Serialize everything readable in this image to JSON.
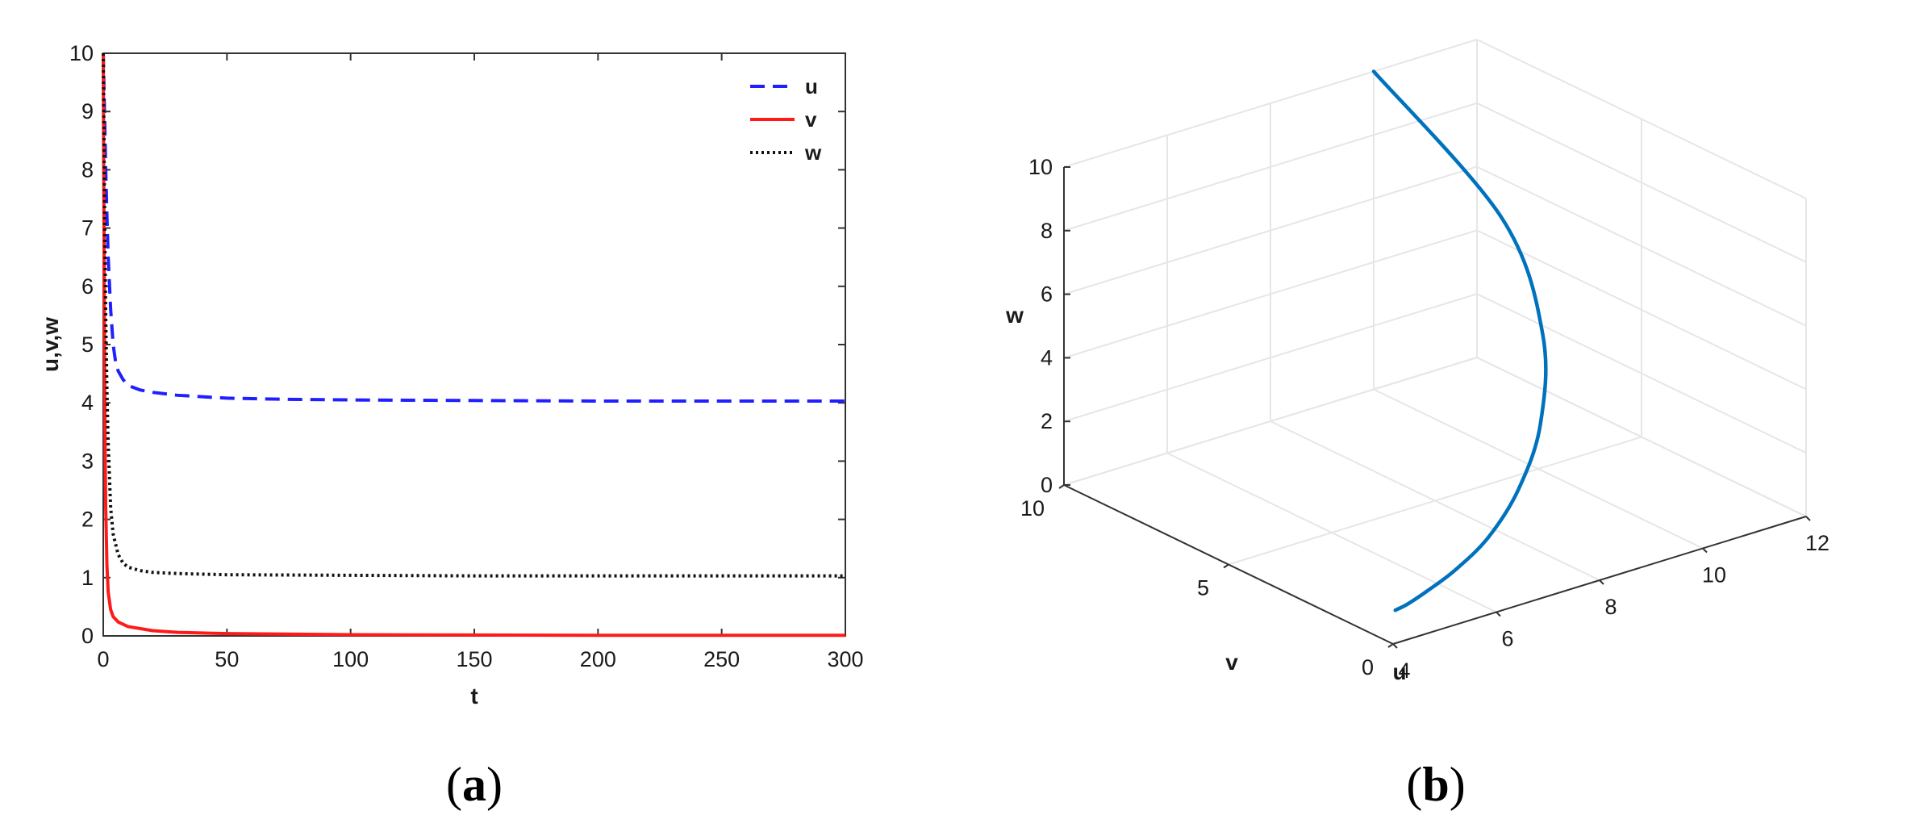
{
  "colors": {
    "u": "#1f1fff",
    "v": "#ff1a1a",
    "w": "#111111",
    "trajectory": "#0072bd",
    "axis": "#333333",
    "grid": "#e6e6e6"
  },
  "panels": {
    "a": {
      "open": "(",
      "letter": "a",
      "close": ")"
    },
    "b": {
      "open": "(",
      "letter": "b",
      "close": ")"
    }
  },
  "chart_data": [
    {
      "type": "line",
      "panel": "a",
      "xlabel": "t",
      "ylabel": "u,v,w",
      "xlim": [
        0,
        300
      ],
      "ylim": [
        0,
        10
      ],
      "xticks": [
        "0",
        "50",
        "100",
        "150",
        "200",
        "250",
        "300"
      ],
      "yticks": [
        "0",
        "1",
        "2",
        "3",
        "4",
        "5",
        "6",
        "7",
        "8",
        "9",
        "10"
      ],
      "legend_position": "top-right",
      "grid": false,
      "series": [
        {
          "name": "u",
          "style": "dashed",
          "x": [
            0,
            0.5,
            1,
            1.5,
            2,
            3,
            4,
            5,
            6,
            8,
            10,
            15,
            20,
            30,
            50,
            75,
            100,
            150,
            200,
            250,
            300
          ],
          "y": [
            10,
            9.0,
            8.0,
            7.2,
            6.5,
            5.6,
            5.0,
            4.7,
            4.55,
            4.4,
            4.3,
            4.22,
            4.18,
            4.13,
            4.08,
            4.06,
            4.05,
            4.04,
            4.03,
            4.03,
            4.03
          ]
        },
        {
          "name": "v",
          "style": "solid",
          "x": [
            0,
            0.2,
            0.4,
            0.6,
            0.8,
            1,
            1.5,
            2,
            3,
            4,
            6,
            10,
            20,
            30,
            50,
            100,
            150,
            200,
            250,
            300
          ],
          "y": [
            10,
            8.0,
            6.0,
            4.3,
            3.0,
            2.2,
            1.2,
            0.75,
            0.45,
            0.33,
            0.24,
            0.16,
            0.09,
            0.06,
            0.04,
            0.02,
            0.015,
            0.01,
            0.01,
            0.01
          ]
        },
        {
          "name": "w",
          "style": "dotted",
          "x": [
            0,
            0.3,
            0.6,
            1,
            1.5,
            2,
            3,
            4,
            6,
            8,
            10,
            15,
            20,
            30,
            50,
            100,
            150,
            200,
            250,
            300
          ],
          "y": [
            10,
            8.5,
            7.0,
            5.5,
            4.2,
            3.3,
            2.2,
            1.75,
            1.4,
            1.25,
            1.18,
            1.12,
            1.09,
            1.07,
            1.05,
            1.04,
            1.03,
            1.03,
            1.03,
            1.03
          ]
        }
      ]
    },
    {
      "type": "line3d",
      "panel": "b",
      "xlabel": "u",
      "ylabel": "v",
      "zlabel": "w",
      "xlim": [
        4,
        12
      ],
      "ylim": [
        0,
        10
      ],
      "zlim": [
        0,
        10
      ],
      "xticks": [
        "4",
        "6",
        "8",
        "10",
        "12"
      ],
      "yticks": [
        "0",
        "5",
        "10"
      ],
      "zticks": [
        "0",
        "2",
        "4",
        "6",
        "8",
        "10"
      ],
      "grid": true,
      "series": [
        {
          "name": "",
          "u": [
            4.05,
            4.3,
            4.7,
            5.3,
            6.1,
            7.0,
            8.0,
            9.0,
            9.8,
            10.0
          ],
          "v": [
            0.01,
            0.02,
            0.05,
            0.15,
            0.4,
            0.9,
            1.8,
            3.3,
            5.8,
            10.0
          ],
          "w": [
            1.03,
            1.1,
            1.3,
            1.6,
            2.1,
            2.9,
            4.0,
            5.6,
            7.6,
            10.0
          ]
        }
      ]
    }
  ]
}
